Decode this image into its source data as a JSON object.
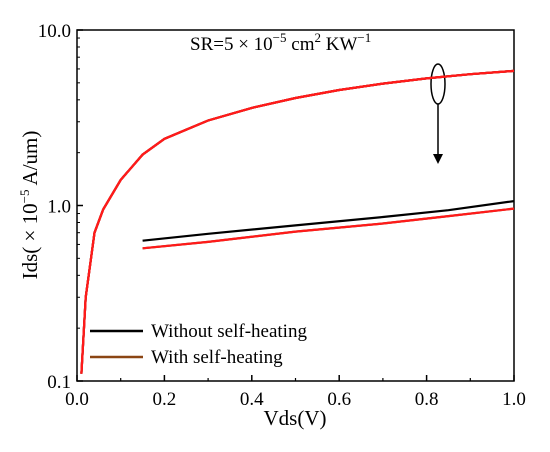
{
  "chart_data": {
    "type": "line",
    "xlabel": "Vds(V)",
    "ylabel": {
      "prefix": "Ids( × 10",
      "exp": "−5",
      "suffix": " A/um)"
    },
    "xlim": [
      0.0,
      1.0
    ],
    "ylim": [
      0.1,
      10.0
    ],
    "yscale": "log",
    "x_ticks": [
      "0.0",
      "0.2",
      "0.4",
      "0.6",
      "0.8",
      "1.0"
    ],
    "y_ticks": [
      "0.1",
      "1.0",
      "10.0"
    ],
    "grid": false,
    "legend_position": "bottom-left",
    "annotation": {
      "prefix": "SR=5 × 10",
      "exp1": "−5",
      "unit1": " cm",
      "exp2": "2",
      "unit2": " KW",
      "exp3": "−1"
    },
    "series": [
      {
        "name": "Without self-heating",
        "color": "#000000",
        "group": "low",
        "x": [
          0.15,
          0.3,
          0.5,
          0.7,
          0.85,
          1.0
        ],
        "y": [
          0.63,
          0.69,
          0.77,
          0.86,
          0.94,
          1.06
        ]
      },
      {
        "name": "With self-heating",
        "color": "#8b4513",
        "group": "low",
        "x": [
          0.15,
          0.3,
          0.5,
          0.7,
          0.85,
          1.0
        ],
        "y": [
          0.57,
          0.62,
          0.71,
          0.79,
          0.87,
          0.96
        ]
      },
      {
        "color": "#000000",
        "group": "high",
        "x": [
          0.01,
          0.02,
          0.04,
          0.06,
          0.1,
          0.15,
          0.2,
          0.3,
          0.4,
          0.5,
          0.6,
          0.7,
          0.8,
          0.9,
          1.0
        ],
        "y": [
          0.11,
          0.3,
          0.7,
          0.95,
          1.4,
          1.95,
          2.4,
          3.05,
          3.6,
          4.1,
          4.55,
          4.95,
          5.3,
          5.6,
          5.85
        ]
      },
      {
        "color": "#8b4513",
        "group": "high",
        "x": [
          0.01,
          0.02,
          0.04,
          0.06,
          0.1,
          0.15,
          0.2,
          0.3,
          0.4,
          0.5,
          0.6,
          0.7,
          0.8,
          0.9,
          1.0
        ],
        "y": [
          0.11,
          0.3,
          0.7,
          0.95,
          1.4,
          1.95,
          2.4,
          3.05,
          3.6,
          4.1,
          4.55,
          4.95,
          5.3,
          5.6,
          5.85
        ]
      }
    ],
    "overlay_color": "#ff1a1a"
  }
}
